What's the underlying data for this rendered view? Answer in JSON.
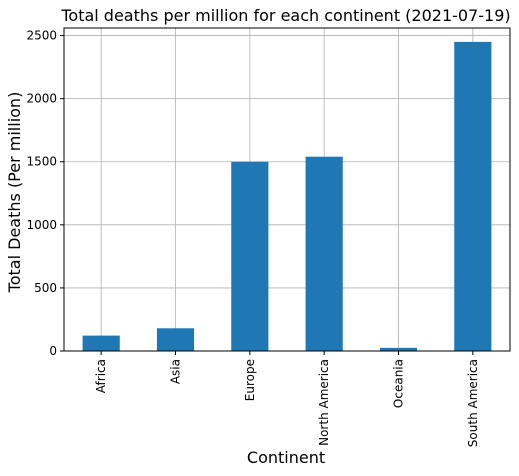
{
  "chart_data": {
    "type": "bar",
    "title": "Total deaths per million for each continent (2021-07-19)",
    "xlabel": "Continent",
    "ylabel": "Total Deaths (Per million)",
    "categories": [
      "Africa",
      "Asia",
      "Europe",
      "North America",
      "Oceania",
      "South America"
    ],
    "values": [
      122,
      180,
      1500,
      1540,
      25,
      2450
    ],
    "ylim": [
      0,
      2560
    ],
    "yticks": [
      0,
      500,
      1000,
      1500,
      2000,
      2500
    ],
    "grid": true,
    "legend": "none",
    "bar_color": "#1f77b4",
    "grid_color": "#b0b0b0"
  }
}
